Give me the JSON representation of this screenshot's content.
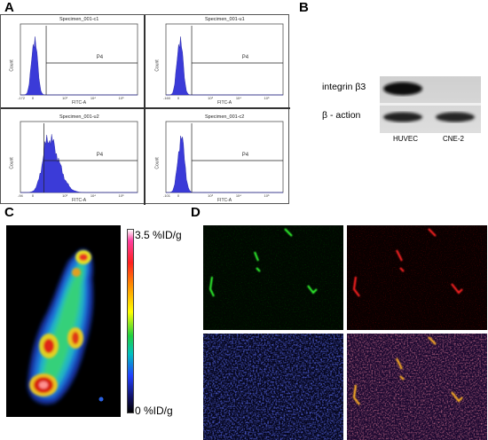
{
  "panels": {
    "a": "A",
    "b": "B",
    "c": "C",
    "d": "D"
  },
  "panel_a": {
    "plots": [
      {
        "title": "Specimen_001-c1",
        "gate": "P4",
        "xlabel": "FITC-A",
        "ylabel": "Count",
        "xticks": [
          "-172",
          "0",
          "10³",
          "10⁴",
          "10⁵"
        ]
      },
      {
        "title": "Specimen_001-u1",
        "gate": "P4",
        "xlabel": "FITC-A",
        "ylabel": "Count",
        "xticks": [
          "-160",
          "0",
          "10³",
          "10⁴",
          "10⁵"
        ]
      },
      {
        "title": "Specimen_001-u2",
        "gate": "P4",
        "xlabel": "FITC-A",
        "ylabel": "Count",
        "xticks": [
          "-94",
          "0",
          "10³",
          "10⁴",
          "10⁵"
        ]
      },
      {
        "title": "Specimen_001-c2",
        "gate": "P4",
        "xlabel": "FITC-A",
        "ylabel": "Count",
        "xticks": [
          "-101",
          "0",
          "10³",
          "10⁴",
          "10⁵"
        ]
      }
    ],
    "color": "#3b3bd8"
  },
  "panel_b": {
    "rows": [
      "integrin β3",
      "β - action"
    ],
    "lanes": [
      "HUVEC",
      "CNE-2"
    ]
  },
  "panel_c": {
    "scale_max": "3.5 %ID/g",
    "scale_min": "0 %ID/g"
  },
  "panel_d": {
    "channels": [
      "green",
      "red",
      "blue",
      "merge"
    ]
  }
}
